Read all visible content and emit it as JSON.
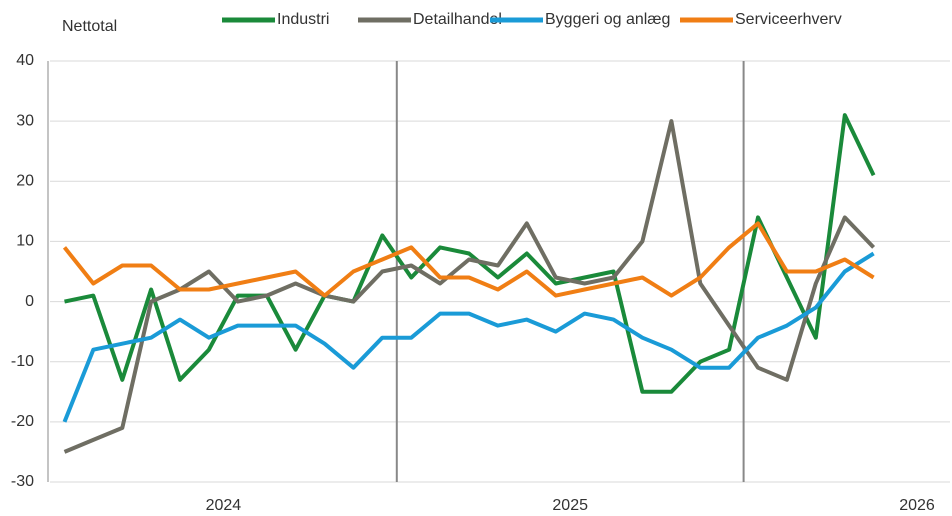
{
  "chart_data": {
    "type": "line",
    "y_label": "Nettotal",
    "categories": [
      null,
      null,
      null,
      null,
      null,
      null,
      null,
      null,
      null,
      null,
      null,
      null,
      null,
      null,
      null,
      null,
      null,
      null,
      null,
      null,
      null,
      null,
      null,
      null,
      null,
      null,
      null,
      null,
      null
    ],
    "x_groups": [
      "2024",
      "2025",
      "2026"
    ],
    "series": [
      {
        "name": "Industri",
        "color": "#1a8a3a",
        "values": [
          0,
          1,
          -13,
          2,
          -13,
          -8,
          1,
          1,
          -8,
          1,
          0,
          11,
          4,
          9,
          8,
          4,
          8,
          3,
          4,
          5,
          -15,
          -15,
          -10,
          -8,
          14,
          4,
          -6,
          31,
          21
        ]
      },
      {
        "name": "Detailhandel",
        "color": "#6f6e63",
        "values": [
          -25,
          -23,
          -21,
          0,
          2,
          5,
          0,
          1,
          3,
          1,
          0,
          5,
          6,
          3,
          7,
          6,
          13,
          4,
          3,
          4,
          10,
          30,
          3,
          -4,
          -11,
          -13,
          3,
          14,
          9
        ]
      },
      {
        "name": "Byggeri og anlæg",
        "color": "#1a9bd7",
        "values": [
          -20,
          -8,
          -7,
          -6,
          -3,
          -6,
          -4,
          -4,
          -4,
          -7,
          -11,
          -6,
          -6,
          -2,
          -2,
          -4,
          -3,
          -5,
          -2,
          -3,
          -6,
          -8,
          -11,
          -11,
          -6,
          -4,
          -1,
          5,
          8
        ]
      },
      {
        "name": "Serviceerhverv",
        "color": "#f07e14",
        "values": [
          9,
          3,
          6,
          6,
          2,
          2,
          3,
          4,
          5,
          1,
          5,
          7,
          9,
          4,
          4,
          2,
          5,
          1,
          2,
          3,
          4,
          1,
          4,
          9,
          13,
          5,
          5,
          7,
          4
        ]
      }
    ],
    "ylim": [
      -30,
      40
    ],
    "yticks": [
      -30,
      -20,
      -10,
      0,
      10,
      20,
      30,
      40
    ],
    "grid": true,
    "legend": "top"
  }
}
